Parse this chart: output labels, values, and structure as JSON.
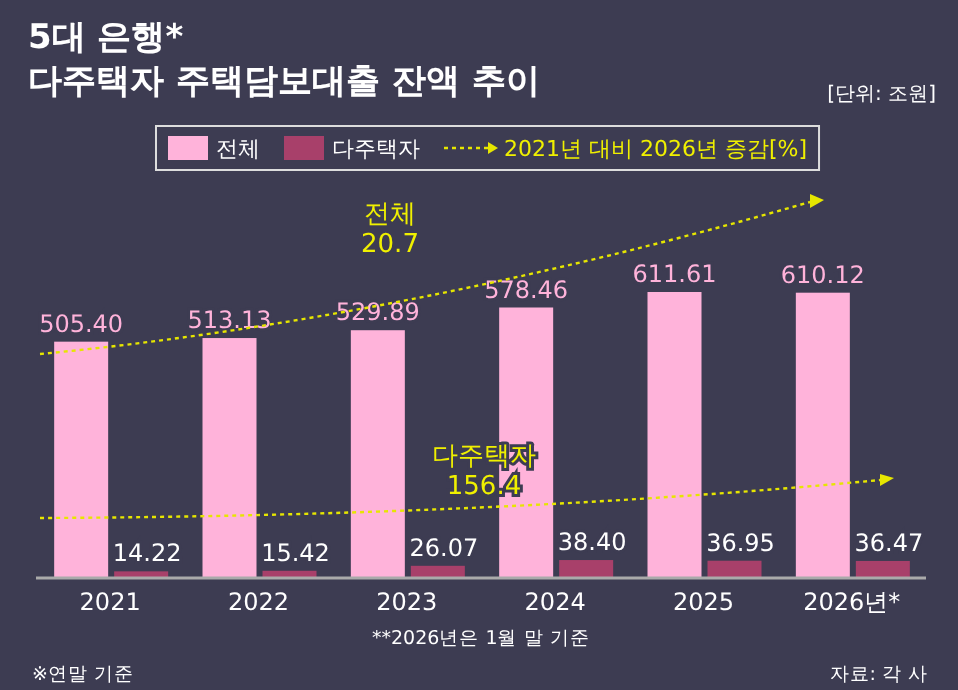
{
  "chart_data": {
    "type": "bar",
    "title": "5대 은행*\n다주택자 주택담보대출 잔액 추이",
    "subtitle": "[단위: 조원]",
    "categories": [
      "2021",
      "2022",
      "2023",
      "2024",
      "2025",
      "2026년*"
    ],
    "series": [
      {
        "name": "전체",
        "color": "#ffb3da",
        "values": [
          505.4,
          513.13,
          529.89,
          578.46,
          611.61,
          610.12
        ],
        "value_labels": [
          "505.40",
          "513.13",
          "529.89",
          "578.46",
          "611.61",
          "610.12"
        ]
      },
      {
        "name": "다주택자",
        "color": "#a8406a",
        "values": [
          14.22,
          15.42,
          26.07,
          38.4,
          36.95,
          36.47
        ],
        "value_labels": [
          "14.22",
          "15.42",
          "26.07",
          "38.40",
          "36.95",
          "36.47"
        ]
      }
    ],
    "legend": "top",
    "annotations": [
      "2021년 대비 2026년 증감[%]",
      "전체\n20.7",
      "다주택자\n156.4",
      "**2026년은 1월 말 기준",
      "※연말 기준",
      "자료: 각 사"
    ]
  }
}
